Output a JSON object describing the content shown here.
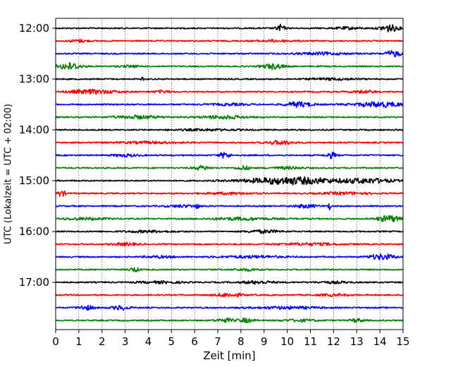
{
  "chart_data": {
    "type": "line",
    "title": "",
    "xlabel": "Zeit  [min]",
    "ylabel": "UTC (Lokalzeit = UTC + 02:00)",
    "xlim": [
      0,
      15
    ],
    "x_ticks": [
      "0",
      "1",
      "2",
      "3",
      "4",
      "5",
      "6",
      "7",
      "8",
      "9",
      "10",
      "11",
      "12",
      "13",
      "14",
      "15"
    ],
    "y_ticks": [
      "12:00",
      "13:00",
      "14:00",
      "15:00",
      "16:00",
      "17:00"
    ],
    "grid_x": true,
    "colors": [
      "#000000",
      "#ff0000",
      "#0000ff",
      "#008000"
    ],
    "rows": [
      {
        "start": "12:00",
        "color": "#000000",
        "bursts": [
          [
            9.7,
            0.25,
            1.0
          ],
          [
            14.4,
            0.55,
            1.0
          ],
          [
            12.6,
            0.8,
            0.3
          ]
        ]
      },
      {
        "start": "12:15",
        "color": "#ff0000",
        "bursts": [
          [
            1.0,
            0.6,
            0.35
          ],
          [
            9.5,
            1.2,
            0.25
          ]
        ]
      },
      {
        "start": "12:30",
        "color": "#0000ff",
        "bursts": [
          [
            14.6,
            0.5,
            0.8
          ],
          [
            11.5,
            1.5,
            0.3
          ]
        ]
      },
      {
        "start": "12:45",
        "color": "#008000",
        "bursts": [
          [
            0.6,
            0.7,
            1.0
          ],
          [
            9.4,
            0.7,
            0.7
          ],
          [
            3.2,
            0.7,
            0.25
          ]
        ]
      },
      {
        "start": "13:00",
        "color": "#000000",
        "bursts": [
          [
            3.75,
            0.05,
            1.5
          ],
          [
            12.0,
            1.5,
            0.25
          ]
        ]
      },
      {
        "start": "13:15",
        "color": "#ff0000",
        "bursts": [
          [
            1.6,
            1.5,
            0.55
          ],
          [
            4.6,
            0.6,
            0.3
          ],
          [
            13.3,
            0.8,
            0.3
          ]
        ]
      },
      {
        "start": "13:30",
        "color": "#0000ff",
        "bursts": [
          [
            10.5,
            0.8,
            0.7
          ],
          [
            14.0,
            1.5,
            0.7
          ],
          [
            7.5,
            1.2,
            0.25
          ]
        ]
      },
      {
        "start": "13:45",
        "color": "#008000",
        "bursts": [
          [
            3.5,
            1.5,
            0.4
          ],
          [
            7.3,
            1.5,
            0.4
          ]
        ]
      },
      {
        "start": "14:00",
        "color": "#000000",
        "bursts": [
          [
            6.5,
            2.0,
            0.2
          ]
        ]
      },
      {
        "start": "14:15",
        "color": "#ff0000",
        "bursts": [
          [
            9.7,
            0.8,
            0.55
          ],
          [
            4.0,
            2.0,
            0.25
          ]
        ]
      },
      {
        "start": "14:30",
        "color": "#0000ff",
        "bursts": [
          [
            7.3,
            0.35,
            0.8
          ],
          [
            11.9,
            0.3,
            0.8
          ],
          [
            3.0,
            0.8,
            0.3
          ]
        ]
      },
      {
        "start": "14:45",
        "color": "#008000",
        "bursts": [
          [
            6.3,
            0.5,
            0.55
          ],
          [
            8.1,
            0.4,
            0.55
          ],
          [
            10.0,
            1.0,
            0.3
          ]
        ]
      },
      {
        "start": "15:00",
        "color": "#000000",
        "bursts": [
          [
            10.2,
            2.8,
            1.0
          ],
          [
            13.5,
            1.5,
            0.6
          ]
        ]
      },
      {
        "start": "15:15",
        "color": "#ff0000",
        "bursts": [
          [
            0.25,
            0.25,
            0.8
          ],
          [
            12.5,
            1.5,
            0.3
          ],
          [
            7.5,
            1.5,
            0.25
          ]
        ]
      },
      {
        "start": "15:30",
        "color": "#0000ff",
        "bursts": [
          [
            6.1,
            0.08,
            1.2
          ],
          [
            11.8,
            0.08,
            1.2
          ],
          [
            10.8,
            0.7,
            0.45
          ],
          [
            5.5,
            1.0,
            0.3
          ]
        ]
      },
      {
        "start": "15:45",
        "color": "#008000",
        "bursts": [
          [
            14.4,
            0.7,
            0.9
          ],
          [
            8.0,
            2.0,
            0.35
          ],
          [
            1.2,
            1.5,
            0.3
          ]
        ]
      },
      {
        "start": "16:00",
        "color": "#000000",
        "bursts": [
          [
            9.0,
            1.0,
            0.4
          ],
          [
            4.0,
            1.5,
            0.25
          ]
        ]
      },
      {
        "start": "16:15",
        "color": "#ff0000",
        "bursts": [
          [
            3.0,
            0.8,
            0.35
          ],
          [
            11.0,
            2.0,
            0.3
          ]
        ]
      },
      {
        "start": "16:30",
        "color": "#0000ff",
        "bursts": [
          [
            14.1,
            0.8,
            0.75
          ],
          [
            8.5,
            2.0,
            0.3
          ],
          [
            4.5,
            1.0,
            0.25
          ]
        ]
      },
      {
        "start": "16:45",
        "color": "#008000",
        "bursts": [
          [
            3.4,
            0.3,
            0.6
          ],
          [
            8.2,
            0.8,
            0.3
          ]
        ]
      },
      {
        "start": "17:00",
        "color": "#000000",
        "bursts": [
          [
            8.7,
            1.0,
            0.4
          ],
          [
            4.5,
            1.5,
            0.25
          ],
          [
            12.0,
            1.0,
            0.25
          ]
        ]
      },
      {
        "start": "17:15",
        "color": "#ff0000",
        "bursts": [
          [
            7.5,
            0.8,
            0.5
          ],
          [
            12.0,
            1.0,
            0.25
          ]
        ]
      },
      {
        "start": "17:30",
        "color": "#0000ff",
        "bursts": [
          [
            1.3,
            0.5,
            0.6
          ],
          [
            2.8,
            0.5,
            0.6
          ],
          [
            10.0,
            2.0,
            0.3
          ]
        ]
      },
      {
        "start": "17:45",
        "color": "#008000",
        "bursts": [
          [
            7.3,
            0.5,
            0.55
          ],
          [
            8.2,
            0.5,
            0.55
          ],
          [
            13.0,
            0.4,
            0.5
          ],
          [
            10.5,
            1.0,
            0.3
          ]
        ]
      }
    ]
  }
}
